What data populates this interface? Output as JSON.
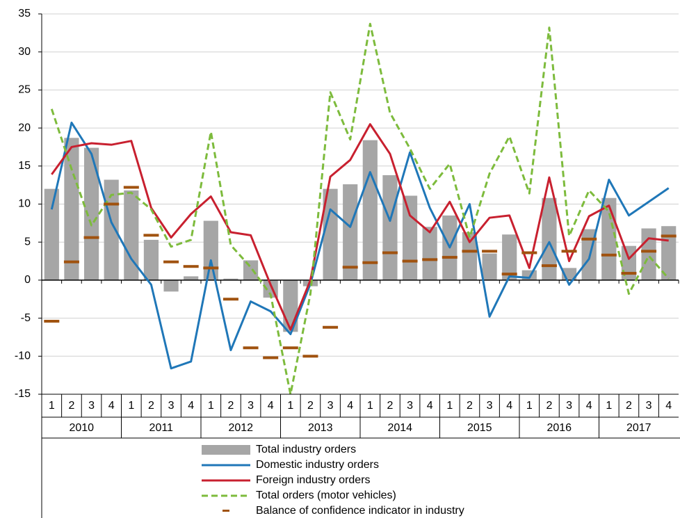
{
  "chart_data": {
    "type": "bar-line",
    "categories": [
      "1",
      "2",
      "3",
      "4",
      "1",
      "2",
      "3",
      "4",
      "1",
      "2",
      "3",
      "4",
      "1",
      "2",
      "3",
      "4",
      "1",
      "2",
      "3",
      "4",
      "1",
      "2",
      "3",
      "4",
      "1",
      "2",
      "3",
      "4",
      "1",
      "2",
      "3",
      "4"
    ],
    "years": [
      "2010",
      "2011",
      "2012",
      "2013",
      "2014",
      "2015",
      "2016",
      "2017"
    ],
    "ylim": [
      -15,
      35
    ],
    "yticks": [
      -15,
      -10,
      -5,
      0,
      5,
      10,
      15,
      20,
      25,
      30,
      35
    ],
    "series": [
      {
        "name": "Total industry orders",
        "kind": "bar",
        "color": "#a6a6a6",
        "values": [
          12,
          18.7,
          17.4,
          13.2,
          11.8,
          5.3,
          -1.5,
          0.5,
          7.8,
          0.2,
          2.6,
          -2.3,
          -6.8,
          -0.8,
          12,
          12.6,
          18.4,
          13.8,
          11.1,
          7,
          8.5,
          6.3,
          3.5,
          6,
          1.3,
          10.8,
          1.6,
          6.7,
          10.8,
          4.5,
          6.8,
          7.1
        ]
      },
      {
        "name": "Domestic industry orders",
        "kind": "line",
        "color": "#1f77b8",
        "values": [
          9.3,
          20.7,
          16.6,
          7.6,
          2.8,
          -0.6,
          -11.6,
          -10.7,
          2.6,
          -9.2,
          -2.8,
          -4.1,
          -7.1,
          -0.5,
          9.3,
          7.0,
          14.2,
          7.8,
          16.8,
          9.5,
          4.3,
          10.0,
          -4.8,
          0.5,
          0.3,
          5.0,
          -0.6,
          2.8,
          13.2,
          8.5,
          10.3,
          12.1
        ]
      },
      {
        "name": "Foreign industry orders",
        "kind": "line",
        "color": "#c8202f",
        "values": [
          13.9,
          17.5,
          18.0,
          17.8,
          18.3,
          9.5,
          5.6,
          8.7,
          11.0,
          6.3,
          5.9,
          -0.6,
          -6.5,
          0,
          13.6,
          15.8,
          20.5,
          16.6,
          8.5,
          6.3,
          10.3,
          5.0,
          8.2,
          8.5,
          1.6,
          13.5,
          2.5,
          8.4,
          9.8,
          2.8,
          5.5,
          5.2
        ]
      },
      {
        "name": "Total orders (motor vehicles)",
        "kind": "dashed-line",
        "color": "#7dbb3c",
        "values": [
          22.5,
          14.6,
          7.2,
          11.2,
          11.5,
          9.3,
          4.4,
          5.3,
          19.5,
          4.6,
          1.7,
          -1.9,
          -15,
          -1.8,
          24.7,
          18.5,
          33.7,
          22.0,
          17.3,
          12.0,
          15.3,
          5.6,
          14.0,
          18.9,
          11.4,
          33.2,
          5.8,
          11.8,
          9.0,
          -1.8,
          3.2,
          0.2
        ]
      },
      {
        "name": "Balance of confidence indicator in industry",
        "kind": "dash",
        "color": "#a0520f",
        "values": [
          -5.4,
          2.4,
          5.6,
          10.0,
          12.2,
          5.9,
          2.4,
          1.8,
          1.6,
          -2.5,
          -8.9,
          -10.2,
          -8.9,
          -10.0,
          -6.2,
          1.7,
          2.3,
          3.6,
          2.5,
          2.7,
          3.0,
          3.8,
          3.8,
          0.8,
          3.6,
          1.9,
          3.8,
          5.4,
          3.3,
          0.9,
          3.8,
          5.8
        ]
      }
    ],
    "grid": true
  }
}
